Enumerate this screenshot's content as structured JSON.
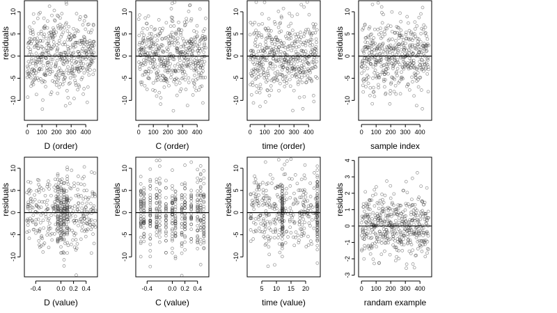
{
  "chart_data": [
    {
      "type": "scatter",
      "xlabel": "D (order)",
      "ylabel": "residuals",
      "xlim": [
        -20,
        480
      ],
      "ylim": [
        -14.5,
        12.5
      ],
      "xticks": [
        0,
        100,
        200,
        300,
        400
      ],
      "yticks": [
        -10,
        -5,
        0,
        5,
        10
      ],
      "hline": 0,
      "gen": {
        "kind": "index",
        "n": 460,
        "sd": 4.2,
        "seed": 11
      }
    },
    {
      "type": "scatter",
      "xlabel": "C (order)",
      "ylabel": "residuals",
      "xlim": [
        -20,
        480
      ],
      "ylim": [
        -14.5,
        12.5
      ],
      "xticks": [
        0,
        100,
        200,
        300,
        400
      ],
      "yticks": [
        -10,
        -5,
        0,
        5,
        10
      ],
      "hline": 0,
      "gen": {
        "kind": "index",
        "n": 460,
        "sd": 4.2,
        "seed": 23
      }
    },
    {
      "type": "scatter",
      "xlabel": "time (order)",
      "ylabel": "residuals",
      "xlim": [
        -20,
        480
      ],
      "ylim": [
        -14.5,
        12.5
      ],
      "xticks": [
        0,
        100,
        200,
        300,
        400
      ],
      "yticks": [
        -10,
        -5,
        0,
        5,
        10
      ],
      "hline": 0,
      "gen": {
        "kind": "index",
        "n": 460,
        "sd": 4.2,
        "seed": 37
      }
    },
    {
      "type": "scatter",
      "xlabel": "sample index",
      "ylabel": "residuals",
      "xlim": [
        -20,
        480
      ],
      "ylim": [
        -14.5,
        12.5
      ],
      "xticks": [
        0,
        100,
        200,
        300,
        400
      ],
      "yticks": [
        -10,
        -5,
        0,
        5,
        10
      ],
      "hline": 0,
      "gen": {
        "kind": "index",
        "n": 460,
        "sd": 4.2,
        "seed": 41
      }
    },
    {
      "type": "scatter",
      "xlabel": "D (value)",
      "ylabel": "residuals",
      "xlim": [
        -0.58,
        0.58
      ],
      "ylim": [
        -14.5,
        12.5
      ],
      "xticks": [
        -0.4,
        0,
        0.2,
        0.4
      ],
      "xtick_labels": [
        "-0.4",
        "0.0",
        "0.2",
        "0.4"
      ],
      "yticks": [
        -10,
        -5,
        0,
        5,
        10
      ],
      "hline": 0,
      "gen": {
        "kind": "uniform",
        "n": 460,
        "lo": -0.55,
        "hi": 0.55,
        "sd": 4.2,
        "seed": 53,
        "clusters": [
          -0.05,
          0.0,
          0.05,
          0.1
        ]
      }
    },
    {
      "type": "scatter",
      "xlabel": "C (value)",
      "ylabel": "residuals",
      "xlim": [
        -0.58,
        0.58
      ],
      "ylim": [
        -14.5,
        12.5
      ],
      "xticks": [
        -0.4,
        0,
        0.2,
        0.4
      ],
      "xtick_labels": [
        "-0.4",
        "0.0",
        "0.2",
        "0.4"
      ],
      "yticks": [
        -10,
        -5,
        0,
        5,
        10
      ],
      "hline": 0,
      "gen": {
        "kind": "discrete",
        "n": 460,
        "sd": 4.2,
        "seed": 67,
        "levels": [
          -0.5,
          -0.45,
          -0.35,
          -0.25,
          -0.2,
          -0.1,
          0.0,
          0.05,
          0.15,
          0.2,
          0.3,
          0.4,
          0.45,
          0.5
        ]
      }
    },
    {
      "type": "scatter",
      "xlabel": "time (value)",
      "ylabel": "residuals",
      "xlim": [
        0,
        25
      ],
      "ylim": [
        -14.5,
        12.5
      ],
      "xticks": [
        5,
        10,
        15,
        20
      ],
      "yticks": [
        -10,
        -5,
        0,
        5,
        10
      ],
      "hline": 0,
      "gen": {
        "kind": "uniform",
        "n": 460,
        "lo": 1,
        "hi": 24,
        "sd": 4.2,
        "seed": 79,
        "clusters": [
          12,
          24
        ]
      }
    },
    {
      "type": "scatter",
      "xlabel": "randam example",
      "ylabel": "residuals",
      "xlim": [
        -20,
        480
      ],
      "ylim": [
        -3.1,
        4.2
      ],
      "xticks": [
        0,
        100,
        200,
        300,
        400
      ],
      "yticks": [
        -3,
        -2,
        -1,
        0,
        1,
        2,
        3,
        4
      ],
      "hline": 0,
      "gen": {
        "kind": "index",
        "n": 460,
        "sd": 1.0,
        "seed": 97
      }
    }
  ]
}
